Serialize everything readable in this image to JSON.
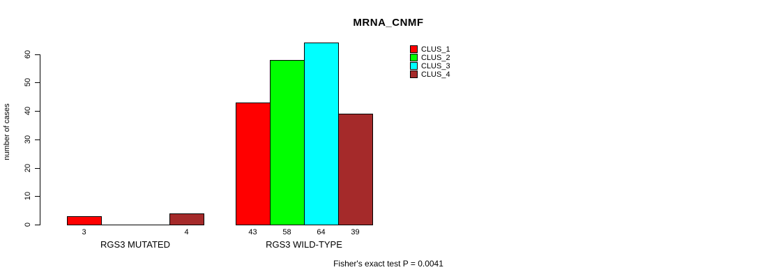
{
  "title": "MRNA_CNMF",
  "footer": "Fisher's exact test P = 0.0041",
  "chart_data": {
    "type": "bar",
    "title": "MRNA_CNMF",
    "xlabel": "",
    "ylabel": "number of cases",
    "ylim": [
      0,
      60
    ],
    "yticks": [
      0,
      10,
      20,
      30,
      40,
      50,
      60
    ],
    "grid": false,
    "categories": [
      "RGS3 MUTATED",
      "RGS3 WILD-TYPE"
    ],
    "series": [
      {
        "name": "CLUS_1",
        "color": "#FF0000",
        "values": [
          3,
          43
        ],
        "bar_labels": [
          "3",
          "43"
        ]
      },
      {
        "name": "CLUS_2",
        "color": "#00FF00",
        "values": [
          0,
          58
        ],
        "bar_labels": [
          "",
          "58"
        ]
      },
      {
        "name": "CLUS_3",
        "color": "#00FFFF",
        "values": [
          0,
          64
        ],
        "bar_labels": [
          "",
          "64"
        ]
      },
      {
        "name": "CLUS_4",
        "color": "#A52A2A",
        "values": [
          4,
          39
        ],
        "bar_labels": [
          "4",
          "39"
        ]
      }
    ],
    "legend": {
      "position": "top-right",
      "entries": [
        "CLUS_1",
        "CLUS_2",
        "CLUS_3",
        "CLUS_4"
      ]
    },
    "annotation": "Fisher's exact test P = 0.0041",
    "bar_border_color": "#000000"
  }
}
